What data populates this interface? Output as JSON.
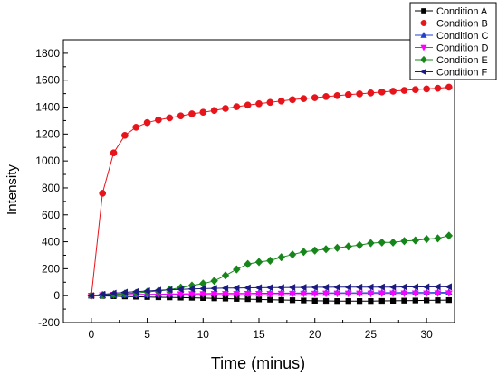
{
  "chart_data": {
    "type": "scatter",
    "title": "",
    "xlabel": "Time (minus)",
    "ylabel": "Intensity",
    "xlim": [
      -2.5,
      32.5
    ],
    "ylim": [
      -200,
      1900
    ],
    "xticks": [
      "0",
      "5",
      "10",
      "15",
      "20",
      "25",
      "30"
    ],
    "yticks": [
      "-200",
      "0",
      "200",
      "400",
      "600",
      "800",
      "1000",
      "1200",
      "1400",
      "1600",
      "1800"
    ],
    "grid": false,
    "legend_position": "top-right",
    "series": [
      {
        "name": "Condition A",
        "color": "#000000",
        "marker": "square",
        "x": [
          0,
          1,
          2,
          3,
          4,
          5,
          6,
          7,
          8,
          9,
          10,
          11,
          12,
          13,
          14,
          15,
          16,
          17,
          18,
          19,
          20,
          21,
          22,
          23,
          24,
          25,
          26,
          27,
          28,
          29,
          30,
          31,
          32
        ],
        "y": [
          0,
          -2,
          -4,
          -6,
          -8,
          -10,
          -12,
          -13,
          -15,
          -16,
          -18,
          -20,
          -22,
          -24,
          -26,
          -28,
          -30,
          -32,
          -34,
          -36,
          -38,
          -39,
          -40,
          -40,
          -40,
          -40,
          -39,
          -38,
          -37,
          -36,
          -35,
          -34,
          -33
        ]
      },
      {
        "name": "Condition B",
        "color": "#e8141b",
        "marker": "circle",
        "x": [
          0,
          1,
          2,
          3,
          4,
          5,
          6,
          7,
          8,
          9,
          10,
          11,
          12,
          13,
          14,
          15,
          16,
          17,
          18,
          19,
          20,
          21,
          22,
          23,
          24,
          25,
          26,
          27,
          28,
          29,
          30,
          31,
          32
        ],
        "y": [
          0,
          760,
          1060,
          1190,
          1250,
          1285,
          1305,
          1320,
          1335,
          1350,
          1362,
          1375,
          1390,
          1403,
          1415,
          1425,
          1435,
          1445,
          1455,
          1463,
          1470,
          1478,
          1485,
          1492,
          1498,
          1505,
          1512,
          1518,
          1524,
          1530,
          1535,
          1540,
          1548
        ]
      },
      {
        "name": "Condition C",
        "color": "#1f3fd0",
        "marker": "triangle-up",
        "x": [
          0,
          1,
          2,
          3,
          4,
          5,
          6,
          7,
          8,
          9,
          10,
          11,
          12,
          13,
          14,
          15,
          16,
          17,
          18,
          19,
          20,
          21,
          22,
          23,
          24,
          25,
          26,
          27,
          28,
          29,
          30,
          31,
          32
        ],
        "y": [
          0,
          2,
          4,
          6,
          8,
          10,
          11,
          12,
          13,
          14,
          15,
          16,
          16,
          17,
          17,
          18,
          18,
          19,
          19,
          20,
          20,
          20,
          21,
          21,
          21,
          22,
          22,
          22,
          23,
          23,
          23,
          24,
          24
        ]
      },
      {
        "name": "Condition D",
        "color": "#ff00ff",
        "marker": "triangle-down",
        "x": [
          0,
          1,
          2,
          3,
          4,
          5,
          6,
          7,
          8,
          9,
          10,
          11,
          12,
          13,
          14,
          15,
          16,
          17,
          18,
          19,
          20,
          21,
          22,
          23,
          24,
          25,
          26,
          27,
          28,
          29,
          30,
          31,
          32
        ],
        "y": [
          0,
          4,
          6,
          8,
          9,
          10,
          10,
          11,
          11,
          12,
          12,
          13,
          13,
          13,
          14,
          14,
          14,
          15,
          15,
          15,
          15,
          16,
          16,
          16,
          16,
          16,
          17,
          17,
          17,
          17,
          17,
          18,
          18
        ]
      },
      {
        "name": "Condition E",
        "color": "#16861a",
        "marker": "diamond",
        "x": [
          0,
          1,
          2,
          3,
          4,
          5,
          6,
          7,
          8,
          9,
          10,
          11,
          12,
          13,
          14,
          15,
          16,
          17,
          18,
          19,
          20,
          21,
          22,
          23,
          24,
          25,
          26,
          27,
          28,
          29,
          30,
          31,
          32
        ],
        "y": [
          0,
          5,
          10,
          15,
          20,
          28,
          35,
          45,
          60,
          75,
          90,
          110,
          150,
          195,
          235,
          250,
          260,
          285,
          305,
          325,
          335,
          345,
          355,
          365,
          375,
          390,
          395,
          395,
          405,
          410,
          420,
          425,
          445
        ]
      },
      {
        "name": "Condition F",
        "color": "#1a1a80",
        "marker": "triangle-left",
        "x": [
          0,
          1,
          2,
          3,
          4,
          5,
          6,
          7,
          8,
          9,
          10,
          11,
          12,
          13,
          14,
          15,
          16,
          17,
          18,
          19,
          20,
          21,
          22,
          23,
          24,
          25,
          26,
          27,
          28,
          29,
          30,
          31,
          32
        ],
        "y": [
          0,
          10,
          18,
          25,
          30,
          35,
          40,
          44,
          47,
          50,
          52,
          54,
          56,
          57,
          58,
          59,
          60,
          60,
          61,
          61,
          62,
          62,
          63,
          63,
          63,
          64,
          64,
          64,
          65,
          65,
          65,
          66,
          66
        ]
      }
    ]
  }
}
